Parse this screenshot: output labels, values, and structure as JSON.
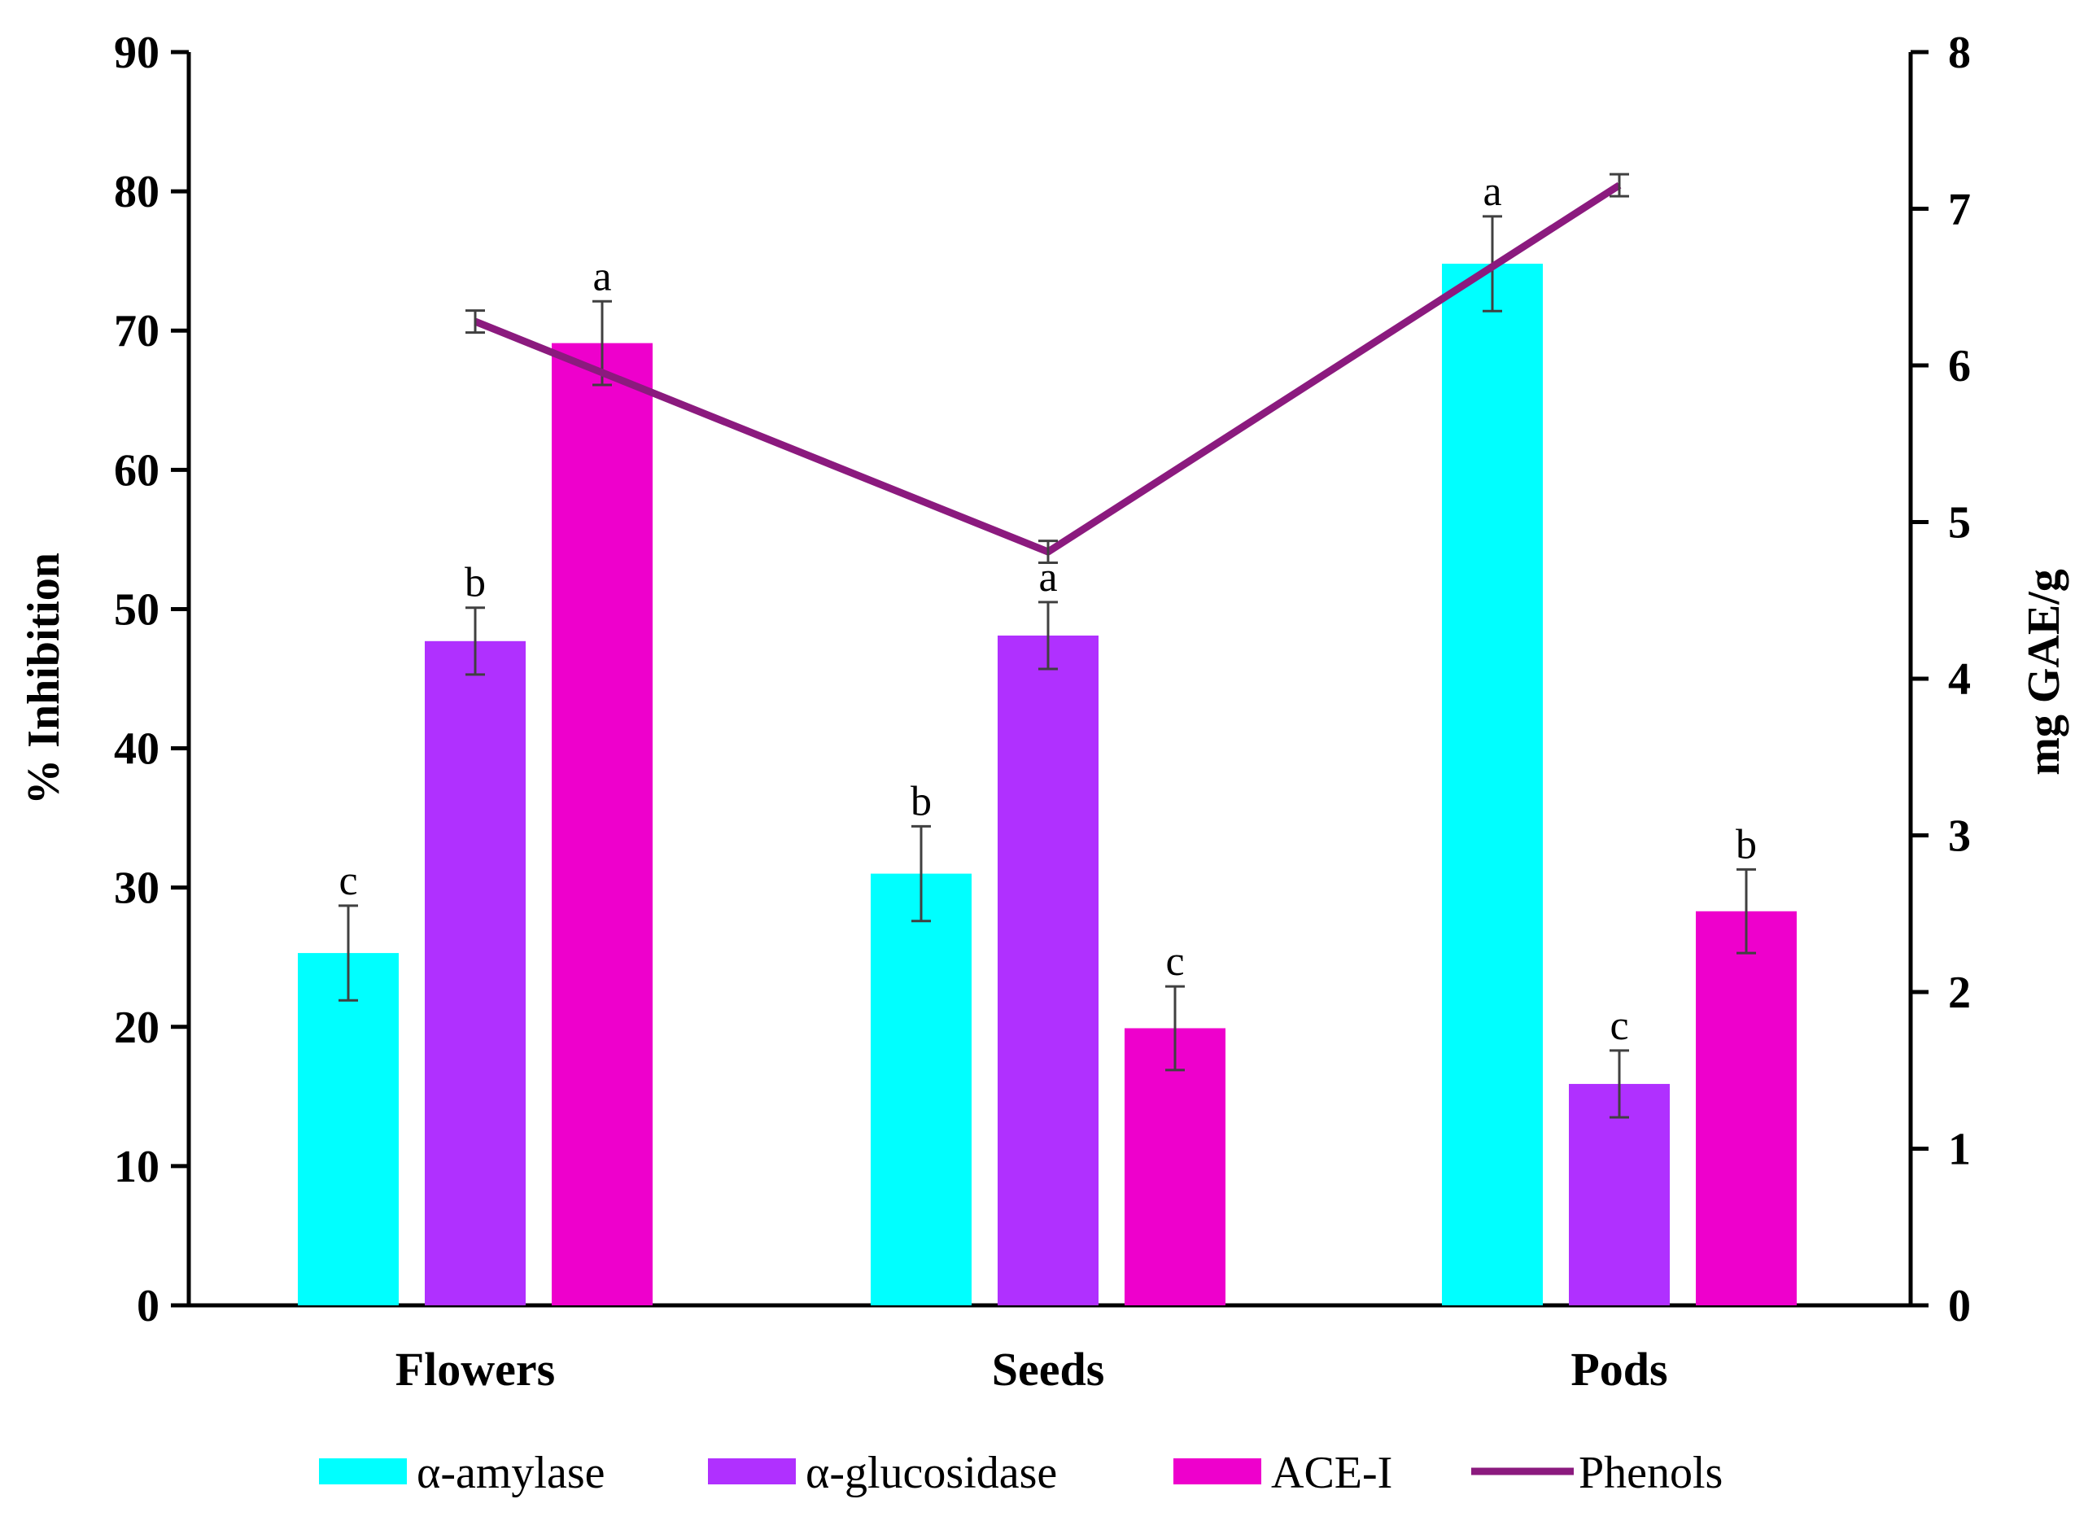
{
  "chart_data": {
    "type": "bar",
    "categories": [
      "Flowers",
      "Seeds",
      "Pods"
    ],
    "y_left": {
      "label": "% Inhibition",
      "min": 0,
      "max": 90,
      "step": 10,
      "ticks": [
        "0",
        "10",
        "20",
        "30",
        "40",
        "50",
        "60",
        "70",
        "80",
        "90"
      ]
    },
    "y_right": {
      "label": "mg GAE/g",
      "min": 0,
      "max": 8,
      "step": 1,
      "ticks": [
        "0",
        "1",
        "2",
        "3",
        "4",
        "5",
        "6",
        "7",
        "8"
      ]
    },
    "series": [
      {
        "name": "α-amylase",
        "kind": "bar",
        "axis": "left",
        "color": "#00FFFF",
        "values": [
          25.3,
          31.0,
          74.8
        ],
        "errors": [
          3.4,
          3.4,
          3.4
        ],
        "letters": [
          "c",
          "b",
          "a"
        ]
      },
      {
        "name": "α-glucosidase",
        "kind": "bar",
        "axis": "left",
        "color": "#B030FF",
        "values": [
          47.7,
          48.1,
          15.9
        ],
        "errors": [
          2.4,
          2.4,
          2.4
        ],
        "letters": [
          "b",
          "a",
          "c"
        ]
      },
      {
        "name": "ACE-I",
        "kind": "bar",
        "axis": "left",
        "color": "#EE00CC",
        "values": [
          69.1,
          19.9,
          28.3
        ],
        "errors": [
          3.0,
          3.0,
          3.0
        ],
        "letters": [
          "a",
          "c",
          "b"
        ]
      },
      {
        "name": "Phenols",
        "kind": "line",
        "axis": "right",
        "color": "#8B1A7E",
        "values": [
          6.28,
          4.81,
          7.15
        ],
        "errors": [
          0.07,
          0.07,
          0.07
        ]
      }
    ],
    "grid": false,
    "legend_position": "bottom"
  }
}
